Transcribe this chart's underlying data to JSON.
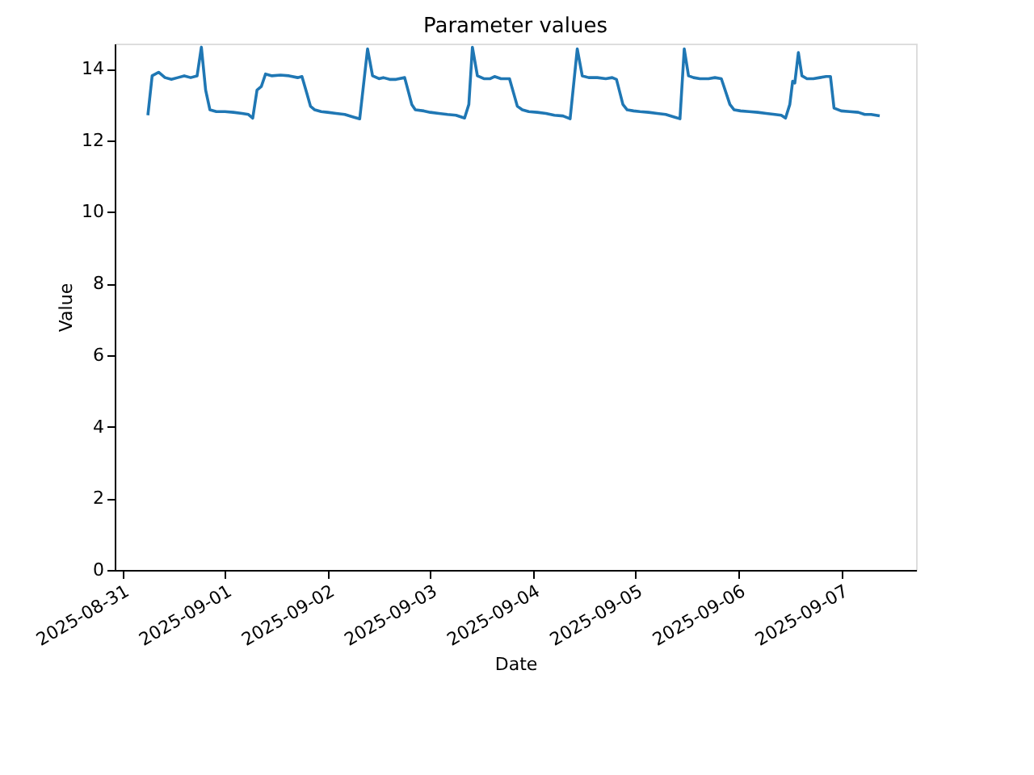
{
  "chart_data": {
    "type": "line",
    "title": "Parameter values",
    "xlabel": "Date",
    "ylabel": "Value",
    "xlim": [
      "2025-08-30T22:15",
      "2025-09-07T17:30"
    ],
    "xticks": [
      "2025-08-31",
      "2025-09-01",
      "2025-09-02",
      "2025-09-03",
      "2025-09-04",
      "2025-09-05",
      "2025-09-06",
      "2025-09-07"
    ],
    "ylim": [
      0,
      14.7
    ],
    "yticks": [
      0,
      2,
      4,
      6,
      8,
      10,
      12,
      14
    ],
    "grid": false,
    "legend": false,
    "marker": "none",
    "line_style": "solid",
    "x": [
      "2025-08-31T06:00",
      "2025-08-31T07:00",
      "2025-08-31T08:30",
      "2025-08-31T10:00",
      "2025-08-31T11:30",
      "2025-08-31T13:00",
      "2025-08-31T14:30",
      "2025-08-31T16:00",
      "2025-08-31T17:30",
      "2025-08-31T18:30",
      "2025-08-31T19:30",
      "2025-08-31T20:30",
      "2025-08-31T22:00",
      "2025-09-01T00:00",
      "2025-09-01T02:00",
      "2025-09-01T04:00",
      "2025-09-01T05:30",
      "2025-09-01T06:30",
      "2025-09-01T07:30",
      "2025-09-01T08:30",
      "2025-09-01T09:30",
      "2025-09-01T11:00",
      "2025-09-01T13:00",
      "2025-09-01T15:00",
      "2025-09-01T17:00",
      "2025-09-01T18:00",
      "2025-09-01T19:10",
      "2025-09-01T20:00",
      "2025-09-01T21:00",
      "2025-09-01T22:30",
      "2025-09-02T00:00",
      "2025-09-02T02:00",
      "2025-09-02T04:00",
      "2025-09-02T06:00",
      "2025-09-02T07:30",
      "2025-09-02T09:20",
      "2025-09-02T10:30",
      "2025-09-02T12:00",
      "2025-09-02T13:00",
      "2025-09-02T14:30",
      "2025-09-02T16:00",
      "2025-09-02T18:00",
      "2025-09-02T19:40",
      "2025-09-02T20:30",
      "2025-09-02T22:30",
      "2025-09-03T00:00",
      "2025-09-03T02:00",
      "2025-09-03T04:00",
      "2025-09-03T06:00",
      "2025-09-03T08:00",
      "2025-09-03T09:00",
      "2025-09-03T09:50",
      "2025-09-03T11:00",
      "2025-09-03T12:30",
      "2025-09-03T14:00",
      "2025-09-03T15:00",
      "2025-09-03T16:30",
      "2025-09-03T18:30",
      "2025-09-03T20:20",
      "2025-09-03T21:30",
      "2025-09-03T23:00",
      "2025-09-04T01:00",
      "2025-09-04T03:00",
      "2025-09-04T05:00",
      "2025-09-04T07:00",
      "2025-09-04T08:40",
      "2025-09-04T10:20",
      "2025-09-04T11:30",
      "2025-09-04T13:00",
      "2025-09-04T15:00",
      "2025-09-04T17:00",
      "2025-09-04T18:30",
      "2025-09-04T19:30",
      "2025-09-04T21:00",
      "2025-09-04T22:00",
      "2025-09-04T23:30",
      "2025-09-05T01:00",
      "2025-09-05T03:00",
      "2025-09-05T05:00",
      "2025-09-05T07:00",
      "2025-09-05T09:00",
      "2025-09-05T10:20",
      "2025-09-05T11:20",
      "2025-09-05T12:20",
      "2025-09-05T13:30",
      "2025-09-05T15:00",
      "2025-09-05T17:00",
      "2025-09-05T18:30",
      "2025-09-05T20:00",
      "2025-09-05T22:00",
      "2025-09-05T23:00",
      "2025-09-06T00:30",
      "2025-09-06T02:30",
      "2025-09-06T04:30",
      "2025-09-06T06:30",
      "2025-09-06T08:30",
      "2025-09-06T10:00",
      "2025-09-06T11:00",
      "2025-09-06T12:00",
      "2025-09-06T12:40",
      "2025-09-06T13:10",
      "2025-09-06T14:00",
      "2025-09-06T14:50",
      "2025-09-06T16:00",
      "2025-09-06T17:30",
      "2025-09-06T19:00",
      "2025-09-06T20:30",
      "2025-09-06T21:30",
      "2025-09-06T22:20",
      "2025-09-07T00:00",
      "2025-09-07T02:00",
      "2025-09-07T04:00",
      "2025-09-07T05:30",
      "2025-09-07T07:00",
      "2025-09-07T09:00"
    ],
    "series": [
      {
        "color": "#1f77b4",
        "values": [
          12.7,
          13.8,
          13.9,
          13.75,
          13.7,
          13.75,
          13.8,
          13.75,
          13.8,
          14.6,
          13.4,
          12.85,
          12.8,
          12.8,
          12.78,
          12.75,
          12.72,
          12.62,
          13.4,
          13.5,
          13.85,
          13.8,
          13.82,
          13.8,
          13.75,
          13.78,
          13.3,
          12.95,
          12.85,
          12.8,
          12.78,
          12.75,
          12.72,
          12.65,
          12.6,
          14.55,
          13.8,
          13.72,
          13.75,
          13.7,
          13.7,
          13.75,
          13.0,
          12.85,
          12.82,
          12.78,
          12.75,
          12.72,
          12.7,
          12.62,
          13.0,
          14.6,
          13.8,
          13.72,
          13.72,
          13.78,
          13.72,
          13.72,
          12.95,
          12.85,
          12.8,
          12.78,
          12.75,
          12.7,
          12.68,
          12.6,
          14.55,
          13.8,
          13.75,
          13.75,
          13.72,
          13.75,
          13.7,
          13.0,
          12.85,
          12.82,
          12.8,
          12.78,
          12.75,
          12.72,
          12.65,
          12.6,
          14.55,
          13.8,
          13.75,
          13.72,
          13.72,
          13.75,
          13.72,
          13.0,
          12.85,
          12.82,
          12.8,
          12.78,
          12.75,
          12.72,
          12.7,
          12.62,
          13.0,
          13.65,
          13.6,
          14.45,
          13.8,
          13.72,
          13.72,
          13.75,
          13.78,
          13.78,
          12.9,
          12.82,
          12.8,
          12.78,
          12.72,
          12.72,
          12.68
        ]
      }
    ]
  }
}
